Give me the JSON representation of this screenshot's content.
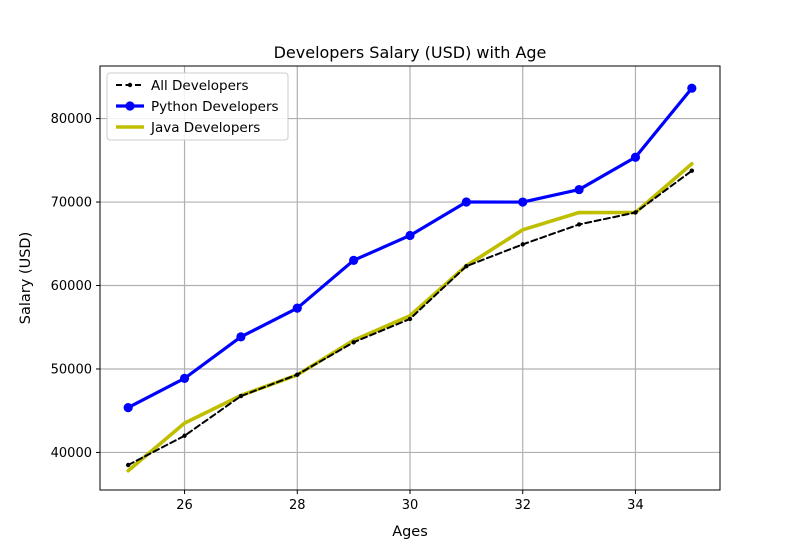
{
  "chart_data": {
    "type": "line",
    "title": "Developers Salary (USD) with Age",
    "xlabel": "Ages",
    "ylabel": "Salary (USD)",
    "x": [
      25,
      26,
      27,
      28,
      29,
      30,
      31,
      32,
      33,
      34,
      35
    ],
    "xlim": [
      24.5,
      35.5
    ],
    "ylim": [
      35500,
      86300
    ],
    "xticks": [
      26,
      28,
      30,
      32,
      34
    ],
    "yticks": [
      40000,
      50000,
      60000,
      70000,
      80000
    ],
    "grid": true,
    "legend_position": "upper-left",
    "series": [
      {
        "name": "All Developers",
        "values": [
          38496,
          42000,
          46752,
          49320,
          53200,
          56000,
          62316,
          64928,
          67317,
          68748,
          73752
        ],
        "color": "#000000",
        "style": "dashed",
        "marker": "small-dot"
      },
      {
        "name": "Python Developers",
        "values": [
          45372,
          48876,
          53850,
          57287,
          63016,
          65998,
          70003,
          70000,
          71496,
          75370,
          83640
        ],
        "color": "#0000ff",
        "style": "solid",
        "marker": "circle"
      },
      {
        "name": "Java Developers",
        "values": [
          37810,
          43515,
          46823,
          49293,
          53437,
          56373,
          62375,
          66674,
          68745,
          68746,
          74583
        ],
        "color": "#bfbf00",
        "style": "solid",
        "marker": "none"
      }
    ]
  }
}
